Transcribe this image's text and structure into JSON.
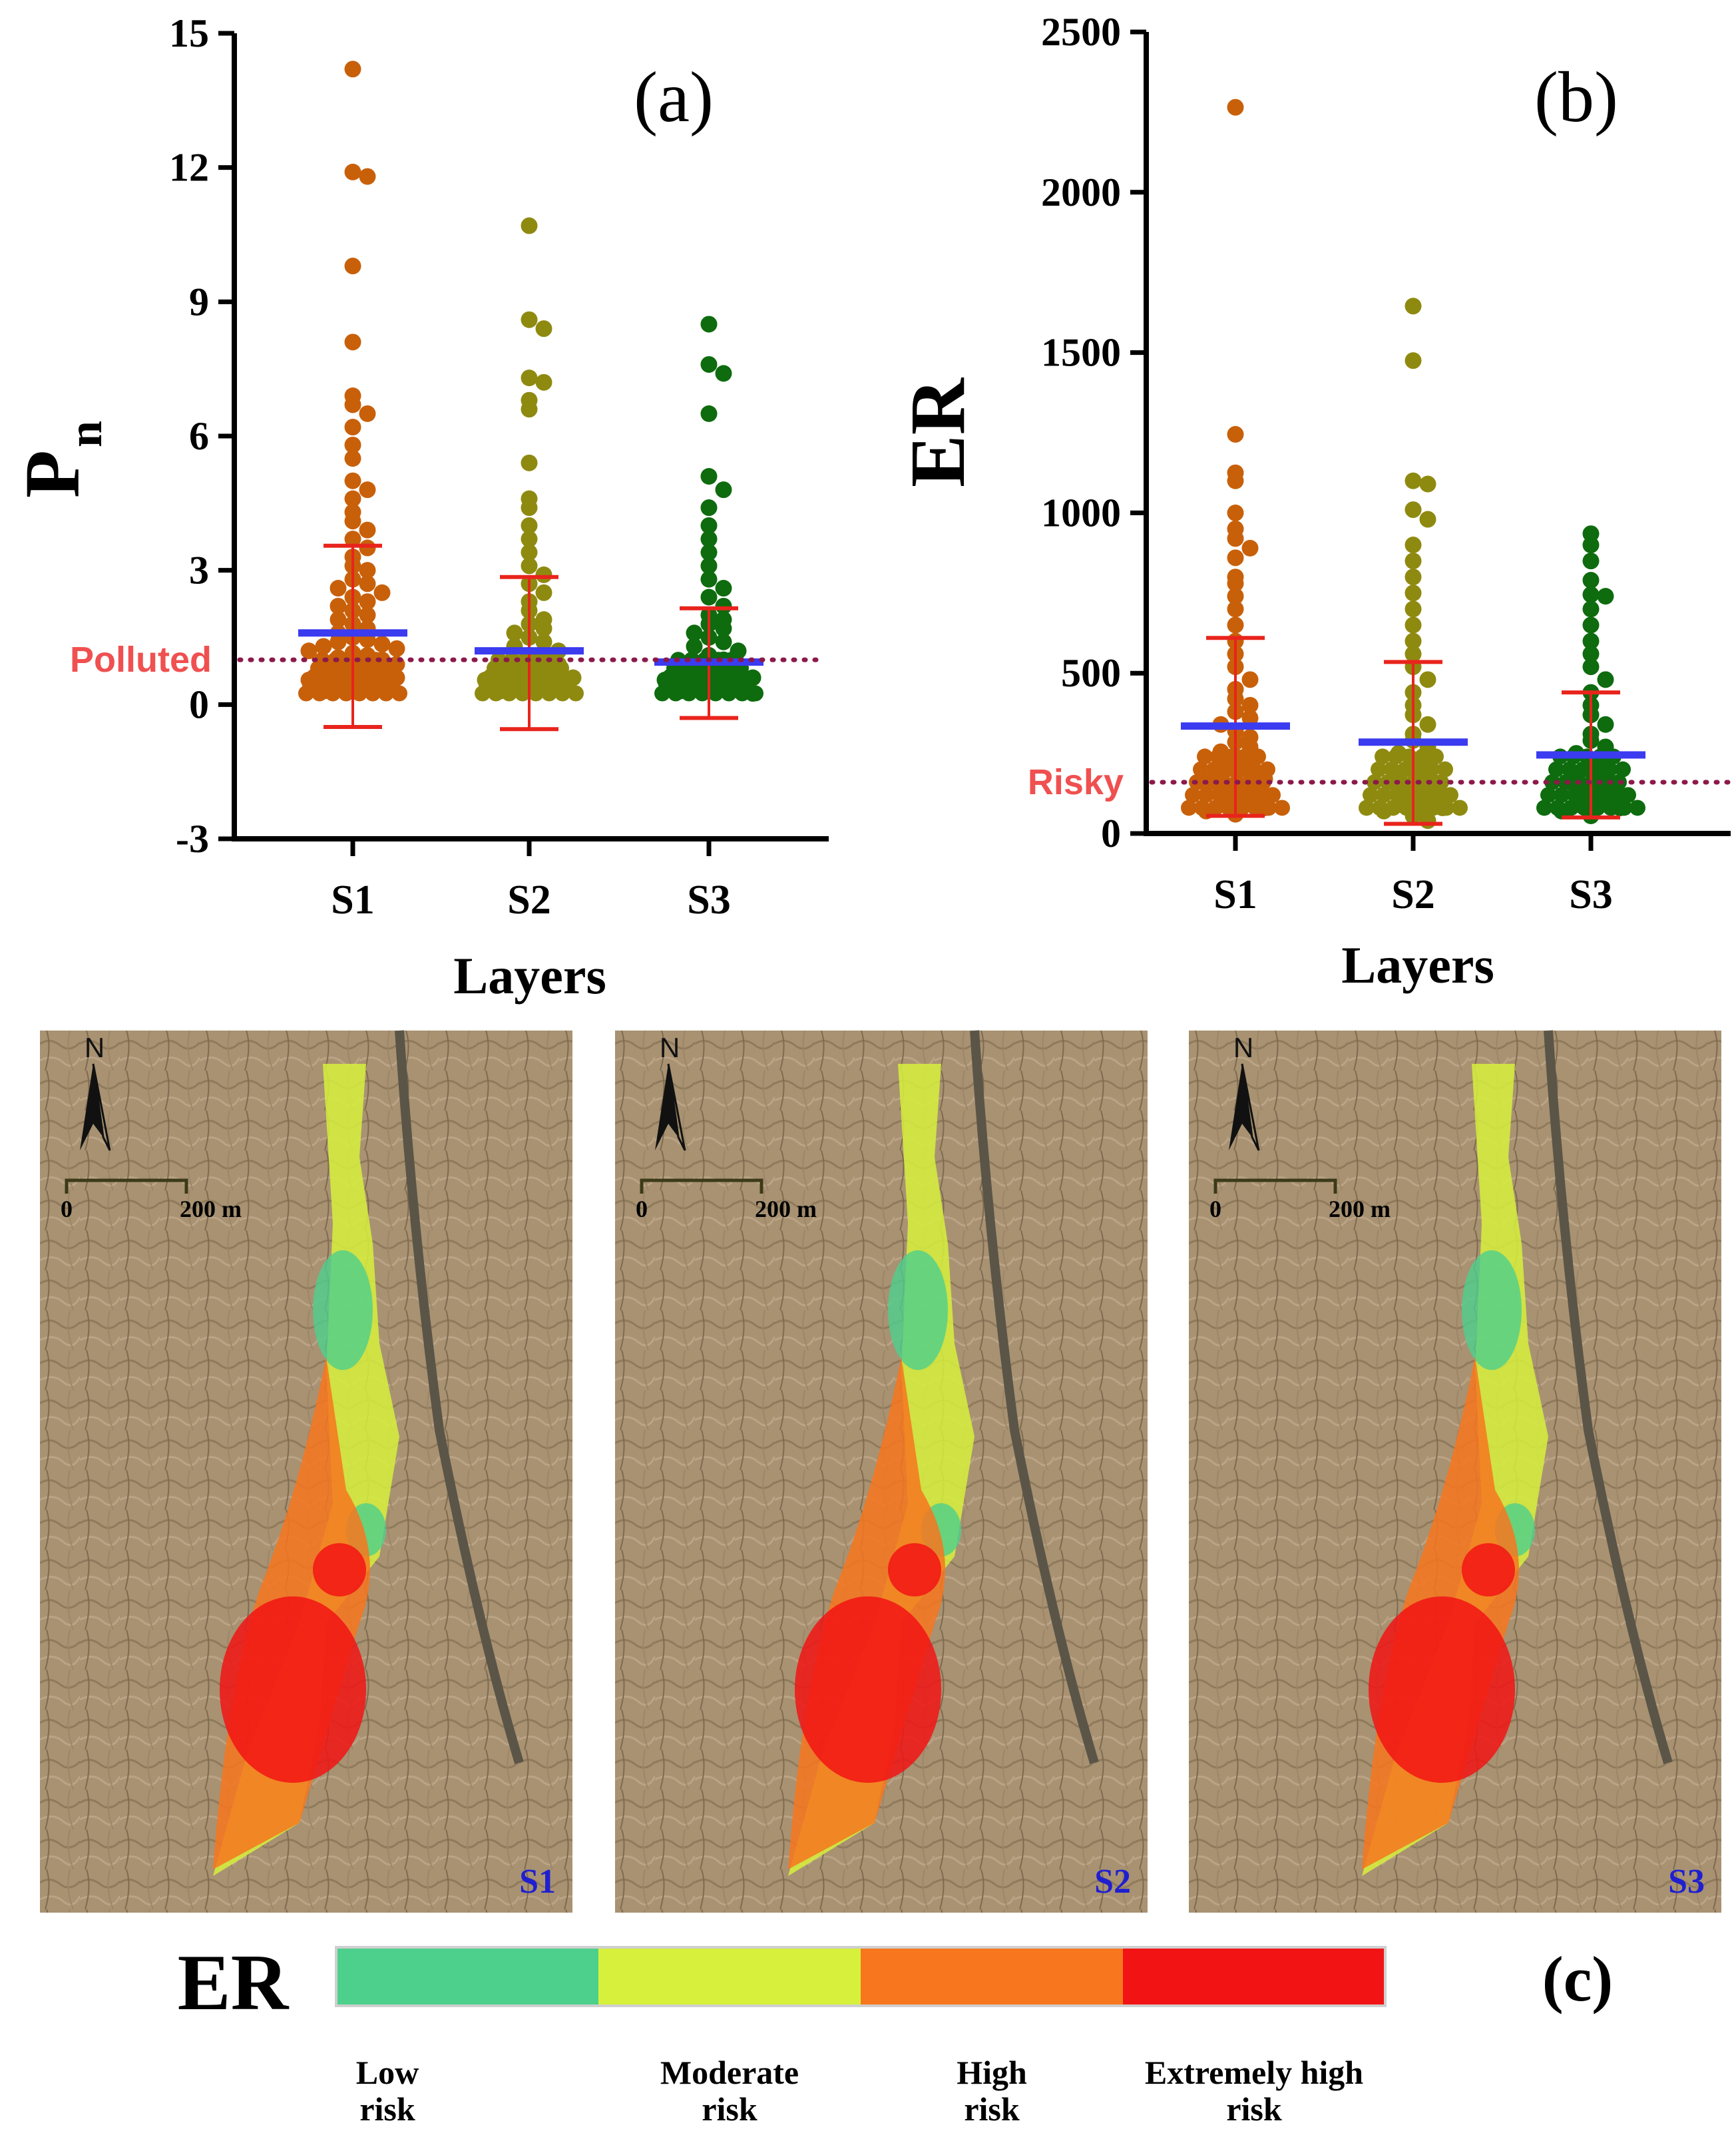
{
  "chart_data": [
    {
      "panel": "(a)",
      "type": "scatter",
      "ylabel": "P",
      "ylabel_sub": "n",
      "xlabel": "Layers",
      "categories": [
        "S1",
        "S2",
        "S3"
      ],
      "ylim": [
        -3,
        15
      ],
      "yticks": [
        -3,
        0,
        3,
        6,
        9,
        12,
        15
      ],
      "grid": false,
      "threshold": {
        "label": "Polluted",
        "value": 1
      },
      "series": [
        {
          "category": "S1",
          "color": "#c8600a",
          "mean": 1.6,
          "sd_upper": 3.55,
          "sd_lower": -0.5,
          "values": [
            14.2,
            11.9,
            11.8,
            9.8,
            8.1,
            6.9,
            6.7,
            6.5,
            6.2,
            5.8,
            5.5,
            5.0,
            4.8,
            4.6,
            4.3,
            4.1,
            3.9,
            3.7,
            3.5,
            3.3,
            3.1,
            3.0,
            2.8,
            2.7,
            2.6,
            2.5,
            2.4,
            2.3,
            2.2,
            2.1,
            2.0,
            1.9,
            1.8,
            1.7,
            1.6,
            1.5,
            1.45,
            1.4,
            1.35,
            1.3,
            1.25,
            1.2,
            1.15,
            1.1,
            1.05,
            1.0,
            0.95,
            0.9,
            0.85,
            0.8,
            0.75,
            0.7,
            0.65,
            0.6,
            0.55,
            0.5,
            0.45,
            0.4,
            0.35,
            0.3
          ]
        },
        {
          "category": "S2",
          "color": "#8e8a10",
          "mean": 1.2,
          "sd_upper": 2.85,
          "sd_lower": -0.55,
          "values": [
            10.7,
            8.6,
            8.4,
            7.3,
            7.2,
            6.8,
            6.6,
            5.4,
            4.6,
            4.4,
            4.0,
            3.7,
            3.4,
            3.1,
            2.9,
            2.7,
            2.5,
            2.3,
            2.1,
            1.9,
            1.8,
            1.7,
            1.6,
            1.5,
            1.4,
            1.3,
            1.2,
            1.1,
            1.0,
            0.95,
            0.9,
            0.85,
            0.8,
            0.75,
            0.7,
            0.65,
            0.6,
            0.55,
            0.5,
            0.45,
            0.4,
            0.35,
            0.3
          ]
        },
        {
          "category": "S3",
          "color": "#0e6b0e",
          "mean": 0.95,
          "sd_upper": 2.15,
          "sd_lower": -0.3,
          "values": [
            8.5,
            7.6,
            7.4,
            6.5,
            5.1,
            4.8,
            4.4,
            4.0,
            3.7,
            3.4,
            3.1,
            2.8,
            2.6,
            2.4,
            2.2,
            2.0,
            1.9,
            1.8,
            1.7,
            1.6,
            1.5,
            1.4,
            1.3,
            1.2,
            1.1,
            1.0,
            0.95,
            0.9,
            0.85,
            0.8,
            0.75,
            0.7,
            0.65,
            0.6,
            0.55,
            0.5,
            0.45,
            0.4,
            0.35,
            0.3,
            0.25
          ]
        }
      ]
    },
    {
      "panel": "(b)",
      "type": "scatter",
      "ylabel": "ER",
      "xlabel": "Layers",
      "categories": [
        "S1",
        "S2",
        "S3"
      ],
      "ylim": [
        0,
        2500
      ],
      "yticks": [
        0,
        500,
        1000,
        1500,
        2000,
        2500
      ],
      "grid": false,
      "threshold": {
        "label": "Risky",
        "value": 160
      },
      "series": [
        {
          "category": "S1",
          "color": "#c8600a",
          "mean": 335,
          "sd_upper": 610,
          "sd_lower": 55,
          "values": [
            2265,
            1245,
            1125,
            1100,
            1000,
            950,
            920,
            890,
            860,
            800,
            780,
            740,
            700,
            650,
            600,
            560,
            520,
            480,
            450,
            420,
            400,
            380,
            360,
            340,
            320,
            300,
            285,
            270,
            255,
            240,
            225,
            210,
            200,
            190,
            180,
            170,
            160,
            150,
            140,
            130,
            120,
            110,
            100,
            90,
            80,
            70,
            60
          ]
        },
        {
          "category": "S2",
          "color": "#8e8a10",
          "mean": 285,
          "sd_upper": 535,
          "sd_lower": 30,
          "values": [
            1645,
            1475,
            1100,
            1090,
            1010,
            980,
            900,
            850,
            800,
            750,
            700,
            650,
            600,
            560,
            520,
            480,
            440,
            400,
            370,
            340,
            310,
            290,
            270,
            250,
            230,
            210,
            195,
            180,
            165,
            150,
            140,
            130,
            120,
            110,
            100,
            90,
            80,
            70,
            55,
            40
          ]
        },
        {
          "category": "S3",
          "color": "#0e6b0e",
          "mean": 245,
          "sd_upper": 440,
          "sd_lower": 50,
          "values": [
            935,
            900,
            850,
            790,
            745,
            740,
            700,
            650,
            600,
            560,
            520,
            480,
            440,
            400,
            370,
            340,
            310,
            290,
            270,
            250,
            230,
            210,
            195,
            180,
            165,
            150,
            140,
            130,
            120,
            110,
            100,
            90,
            80,
            70,
            55
          ]
        }
      ]
    },
    {
      "panel": "(c)",
      "type": "heatmap",
      "maps": [
        "S1",
        "S2",
        "S3"
      ],
      "scale_label": "200 m",
      "scale_zero": "0",
      "north_label": "N",
      "legend_title": "ER",
      "legend": [
        {
          "color": "#4dd08c",
          "line1": "Low",
          "line2": "risk"
        },
        {
          "color": "#d7f03c",
          "line1": "Moderate",
          "line2": "risk"
        },
        {
          "color": "#f7761e",
          "line1": "High",
          "line2": "risk"
        },
        {
          "color": "#f21414",
          "line1": "Extremely high",
          "line2": "risk"
        }
      ]
    }
  ],
  "colors": {
    "mean_bar": "#3b3bf0",
    "sd_bar": "#e8241c",
    "threshold": "#8b1a4a",
    "threshold_text": "#f05050",
    "map_label": "#1f1fd0"
  }
}
